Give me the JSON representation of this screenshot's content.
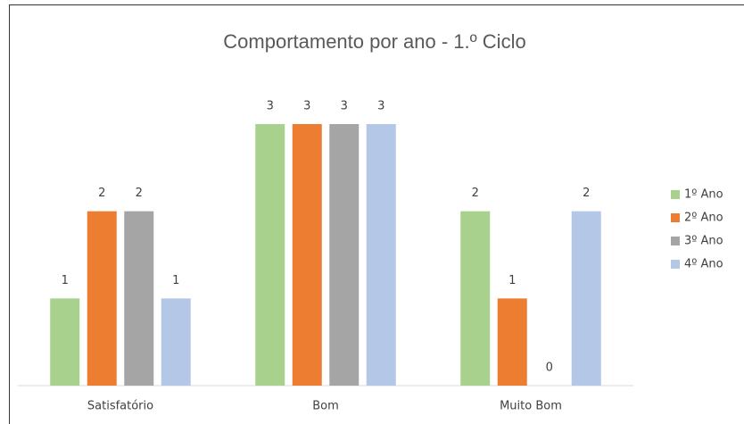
{
  "chart_data": {
    "type": "bar",
    "title": "Comportamento por ano - 1.º Ciclo",
    "categories": [
      "Satisfatório",
      "Bom",
      "Muito Bom"
    ],
    "series": [
      {
        "name": "1º Ano",
        "color": "#a9d18e",
        "values": [
          1,
          3,
          2
        ]
      },
      {
        "name": "2º Ano",
        "color": "#ed7d31",
        "values": [
          2,
          3,
          1
        ]
      },
      {
        "name": "3º Ano",
        "color": "#a5a5a5",
        "values": [
          2,
          3,
          0
        ]
      },
      {
        "name": "4º Ano",
        "color": "#b4c7e7",
        "values": [
          1,
          3,
          2
        ]
      }
    ],
    "legend": "right"
  }
}
